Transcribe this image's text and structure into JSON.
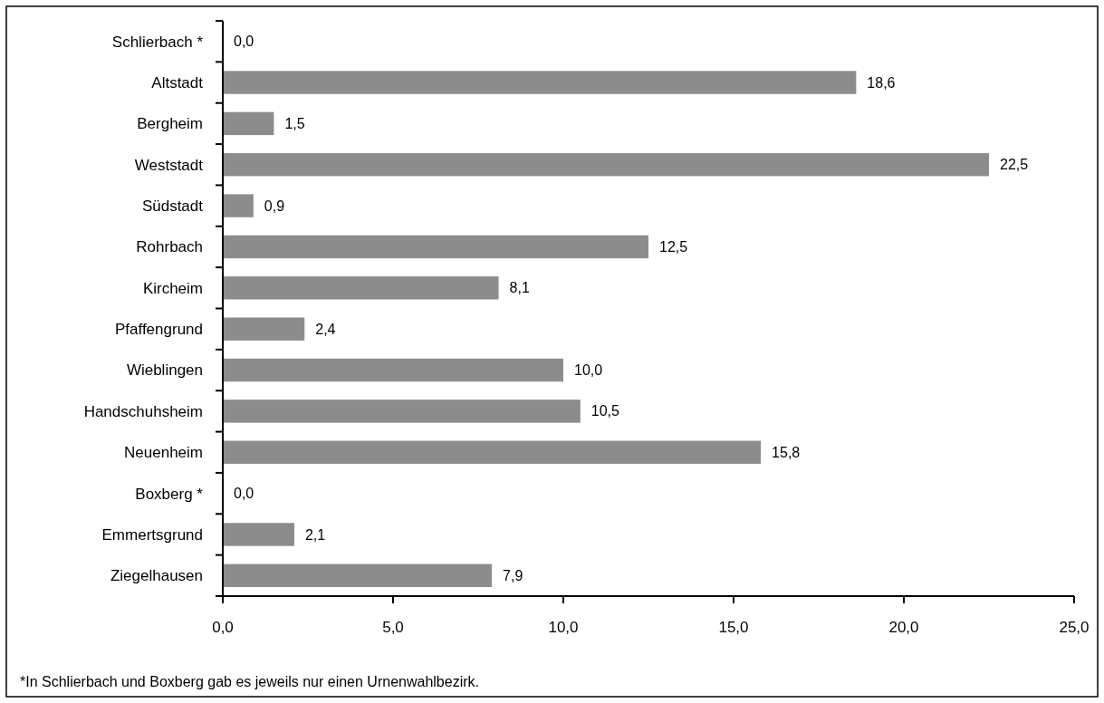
{
  "chart_data": {
    "type": "bar",
    "orientation": "horizontal",
    "categories": [
      "Schlierbach *",
      "Altstadt",
      "Bergheim",
      "Weststadt",
      "Südstadt",
      "Rohrbach",
      "Kircheim",
      "Pfaffengrund",
      "Wieblingen",
      "Handschuhsheim",
      "Neuenheim",
      "Boxberg *",
      "Emmertsgrund",
      "Ziegelhausen"
    ],
    "values": [
      0,
      18.6,
      1.5,
      22.5,
      0.9,
      12.5,
      8.1,
      2.4,
      10.0,
      10.5,
      15.8,
      0,
      2.1,
      7.9
    ],
    "value_labels": [
      "0,0",
      "18,6",
      "1,5",
      "22,5",
      "0,9",
      "12,5",
      "8,1",
      "2,4",
      "10,0",
      "10,5",
      "15,8",
      "0,0",
      "2,1",
      "7,9"
    ],
    "color": "#8c8c8c",
    "xlim": [
      0,
      25
    ],
    "xticks": [
      {
        "value": 0,
        "label": "0,0"
      },
      {
        "value": 5,
        "label": "5,0"
      },
      {
        "value": 10,
        "label": "10,0"
      },
      {
        "value": 15,
        "label": "15,0"
      },
      {
        "value": 20,
        "label": "20,0"
      },
      {
        "value": 25,
        "label": "25,0"
      }
    ],
    "annotations": [
      "*In Schlierbach und Boxberg gab es jeweils nur einen Urnenwahlbezirk."
    ]
  }
}
